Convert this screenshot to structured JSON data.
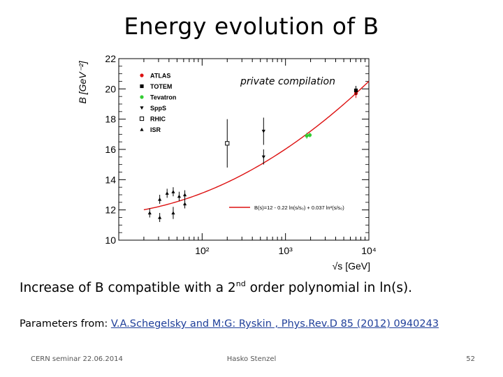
{
  "slide": {
    "title": "Energy evolution of B",
    "caption_pre": "Increase of B compatible with a 2",
    "caption_sup": "nd",
    "caption_post": " order polynomial in ln(s).",
    "params_label": "Parameters from: ",
    "params_link": "V.A.Schegelsky and M:G: Ryskin , Phys.Rev.D 85 (2012) 0940243",
    "footer_left": "CERN seminar 22.06.2014",
    "footer_center": "Hasko Stenzel",
    "footer_right": "52"
  },
  "chart_data": {
    "type": "scatter",
    "ylabel": "B [GeV⁻²]",
    "xlabel": "√s [GeV]",
    "xscale": "log",
    "xlim": [
      10,
      10000
    ],
    "ylim": [
      10,
      22
    ],
    "yticks": [
      10,
      12,
      14,
      16,
      18,
      20,
      22
    ],
    "xtick_labels": [
      "10²",
      "10³",
      "10⁴"
    ],
    "annotation": "private compilation",
    "fit_label": "B(s)=12 - 0.22 ln(s/s₀) + 0.037 ln²(s/s₀)",
    "fit_color": "#dd1111",
    "fit": {
      "a": 12,
      "b": -0.22,
      "c": 0.037
    },
    "legend_position": "top-left",
    "series": [
      {
        "name": "ATLAS",
        "marker": "circle",
        "color": "#dd1111",
        "points": [
          {
            "x": 7000,
            "y": 19.7,
            "err": 0.3
          }
        ]
      },
      {
        "name": "TOTEM",
        "marker": "square",
        "color": "#000000",
        "points": [
          {
            "x": 7000,
            "y": 19.9,
            "err": 0.3
          }
        ]
      },
      {
        "name": "Tevatron",
        "marker": "circle",
        "color": "#33cc33",
        "points": [
          {
            "x": 1800,
            "y": 16.9,
            "err": 0.2
          },
          {
            "x": 1960,
            "y": 16.95,
            "err": 0.15
          }
        ]
      },
      {
        "name": "SppS",
        "marker": "triangle-down",
        "color": "#000000",
        "points": [
          {
            "x": 546,
            "y": 17.2,
            "err": 0.9
          },
          {
            "x": 546,
            "y": 15.5,
            "err": 0.5
          }
        ]
      },
      {
        "name": "RHIC",
        "marker": "open-square",
        "color": "#000000",
        "points": [
          {
            "x": 200,
            "y": 16.4,
            "err": 1.6
          }
        ]
      },
      {
        "name": "ISR",
        "marker": "triangle",
        "color": "#000000",
        "points": [
          {
            "x": 23.5,
            "y": 11.8,
            "err": 0.3
          },
          {
            "x": 31,
            "y": 12.7,
            "err": 0.3
          },
          {
            "x": 31,
            "y": 11.5,
            "err": 0.3
          },
          {
            "x": 38,
            "y": 13.1,
            "err": 0.3
          },
          {
            "x": 45,
            "y": 13.2,
            "err": 0.3
          },
          {
            "x": 45,
            "y": 11.8,
            "err": 0.4
          },
          {
            "x": 53,
            "y": 12.9,
            "err": 0.3
          },
          {
            "x": 62,
            "y": 13.0,
            "err": 0.3
          },
          {
            "x": 62,
            "y": 12.4,
            "err": 0.3
          }
        ]
      }
    ]
  }
}
